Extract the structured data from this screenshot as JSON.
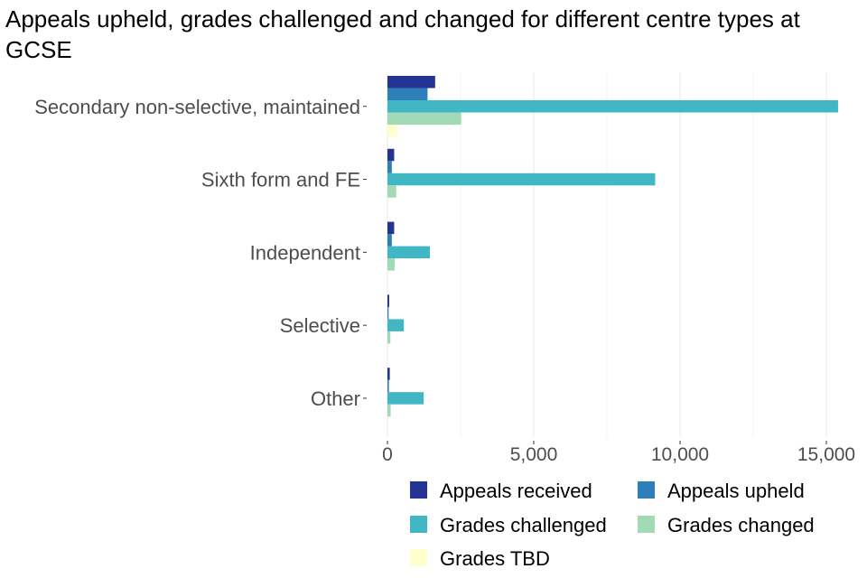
{
  "chart_data": {
    "type": "bar",
    "orientation": "horizontal",
    "title": "Appeals upheld, grades challenged and changed for different centre types at GCSE",
    "xlabel": "",
    "ylabel": "",
    "xlim": [
      0,
      16000
    ],
    "x_ticks": [
      0,
      5000,
      10000,
      15000
    ],
    "x_tick_labels": [
      "0",
      "5,000",
      "10,000",
      "15,000"
    ],
    "grid": "vertical major and minor",
    "legend_position": "bottom",
    "categories": [
      "Secondary non-selective, maintained",
      "Sixth form and FE",
      "Independent",
      "Selective",
      "Other"
    ],
    "series": [
      {
        "name": "Appeals received",
        "color": "#253494",
        "values": [
          1630,
          230,
          230,
          60,
          80
        ]
      },
      {
        "name": "Appeals upheld",
        "color": "#2c7fb8",
        "values": [
          1370,
          150,
          150,
          40,
          50
        ]
      },
      {
        "name": "Grades challenged",
        "color": "#41b6c4",
        "values": [
          15400,
          9150,
          1450,
          560,
          1240
        ]
      },
      {
        "name": "Grades changed",
        "color": "#a1dab4",
        "values": [
          2520,
          300,
          250,
          100,
          110
        ]
      },
      {
        "name": "Grades TBD",
        "color": "#ffffcc",
        "values": [
          330,
          0,
          0,
          0,
          0
        ]
      }
    ]
  }
}
